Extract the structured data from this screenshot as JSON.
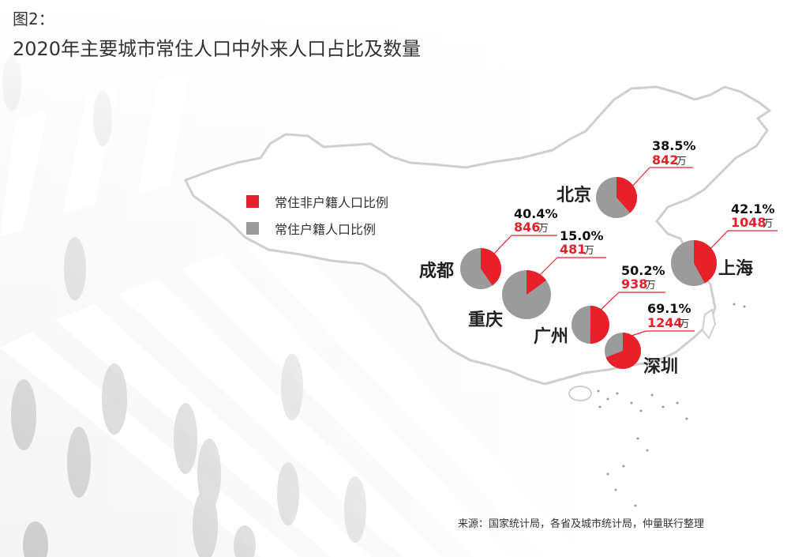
{
  "title": {
    "line1": "图2：",
    "line2": "2020年主要城市常住人口中外来人口占比及数量"
  },
  "legend": [
    {
      "label": "常住非户籍人口比例",
      "color": "#e8202a"
    },
    {
      "label": "常住户籍人口比例",
      "color": "#9b9b9b"
    }
  ],
  "colors": {
    "non_hukou": "#e8202a",
    "hukou": "#9b9b9b",
    "pct_text": "#111111",
    "count_text": "#e8202a",
    "map_outline": "#c8c8c8"
  },
  "source": "来源：国家统计局，各省及城市统计局，仲量联行整理",
  "chart_data": {
    "type": "pie",
    "title": "2020年主要城市常住人口中外来人口占比及数量",
    "series": [
      {
        "name": "常住非户籍人口比例"
      },
      {
        "name": "常住户籍人口比例"
      }
    ],
    "unit": "万",
    "cities": [
      {
        "city": "北京",
        "pct_label": "38.5%",
        "non_hukou_pct": 38.5,
        "count_label": "842",
        "count": 842
      },
      {
        "city": "上海",
        "pct_label": "42.1%",
        "non_hukou_pct": 42.1,
        "count_label": "1048",
        "count": 1048
      },
      {
        "city": "成都",
        "pct_label": "40.4%",
        "non_hukou_pct": 40.4,
        "count_label": "846",
        "count": 846
      },
      {
        "city": "重庆",
        "pct_label": "15.0%",
        "non_hukou_pct": 15.0,
        "count_label": "481",
        "count": 481
      },
      {
        "city": "广州",
        "pct_label": "50.2%",
        "non_hukou_pct": 50.2,
        "count_label": "938",
        "count": 938
      },
      {
        "city": "深圳",
        "pct_label": "69.1%",
        "non_hukou_pct": 69.1,
        "count_label": "1244",
        "count": 1244
      }
    ]
  }
}
